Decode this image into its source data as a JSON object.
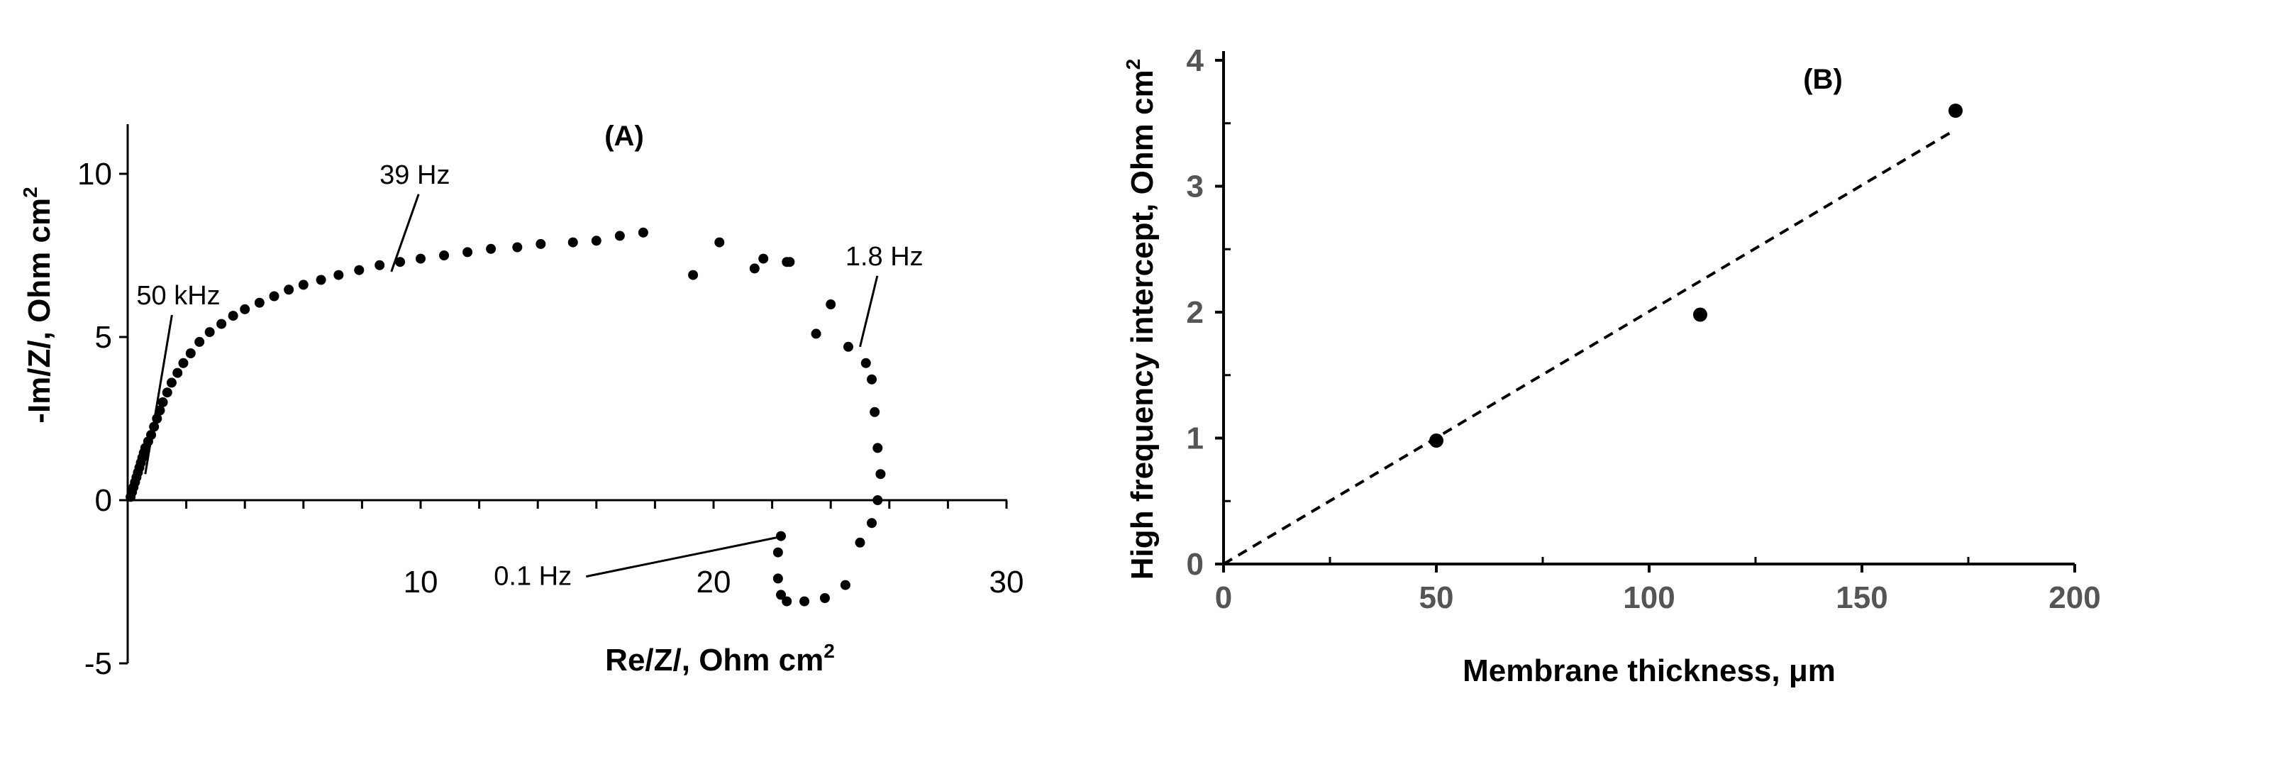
{
  "chart_data": [
    {
      "panel_label": "(A)",
      "type": "scatter",
      "xlabel": "Re/Z/,  Ohm cm",
      "xlabel_sup": "2",
      "ylabel": "-Im/Z/,  Ohm cm",
      "ylabel_sup": "2",
      "xlim": [
        0,
        30
      ],
      "ylim": [
        -5,
        12.5
      ],
      "xticks": [
        10,
        20,
        30
      ],
      "yticks": [
        -5,
        0,
        5,
        10
      ],
      "grid": false,
      "annotations": [
        {
          "text": "50 kHz",
          "x": 0.6,
          "y": 0.8,
          "label_x": 0.3,
          "label_y": 6.0
        },
        {
          "text": "39 Hz",
          "x": 9.0,
          "y": 7.0,
          "label_x": 8.6,
          "label_y": 9.7
        },
        {
          "text": "1.8 Hz",
          "x": 25.0,
          "y": 4.7,
          "label_x": 24.5,
          "label_y": 7.2
        },
        {
          "text": "0.1 Hz",
          "x": 22.4,
          "y": -1.1,
          "label_x": 12.5,
          "label_y": -2.6
        }
      ],
      "series": [
        {
          "x": [
            0.1,
            0.15,
            0.2,
            0.25,
            0.3,
            0.35,
            0.4,
            0.45,
            0.5,
            0.55,
            0.6,
            0.7,
            0.8,
            0.9,
            1.0,
            1.1,
            1.2,
            1.35,
            1.5,
            1.7,
            1.9,
            2.15,
            2.45,
            2.8,
            3.2,
            3.6,
            4.0,
            4.5,
            5.0,
            5.5,
            6.0,
            6.6,
            7.2,
            7.9,
            8.6,
            9.3,
            10.0,
            10.8,
            11.6,
            12.4,
            13.3,
            14.1,
            15.2,
            16.0,
            16.8,
            17.6,
            19.3,
            20.2,
            21.4,
            21.7,
            22.5,
            22.6,
            23.5,
            24.0,
            24.6,
            25.2,
            25.4,
            25.5,
            25.6,
            25.7,
            25.6,
            25.4,
            25.0,
            24.5,
            23.8,
            23.1,
            22.5,
            22.3,
            22.2,
            22.2,
            22.3
          ],
          "y": [
            0.1,
            0.25,
            0.4,
            0.55,
            0.7,
            0.85,
            1.0,
            1.15,
            1.3,
            1.45,
            1.6,
            1.8,
            2.0,
            2.25,
            2.5,
            2.75,
            3.0,
            3.3,
            3.6,
            3.9,
            4.2,
            4.5,
            4.85,
            5.15,
            5.4,
            5.65,
            5.85,
            6.05,
            6.25,
            6.45,
            6.6,
            6.75,
            6.9,
            7.05,
            7.2,
            7.3,
            7.4,
            7.5,
            7.6,
            7.7,
            7.75,
            7.85,
            7.9,
            7.95,
            8.1,
            8.2,
            6.9,
            7.9,
            7.1,
            7.4,
            7.3,
            7.3,
            5.1,
            6.0,
            4.7,
            4.2,
            3.7,
            2.7,
            1.6,
            0.8,
            0.0,
            -0.7,
            -1.3,
            -2.6,
            -3.0,
            -3.1,
            -3.1,
            -2.9,
            -2.4,
            -1.6,
            -1.1
          ]
        }
      ]
    },
    {
      "panel_label": "(B)",
      "type": "scatter",
      "xlabel": "Membrane thickness, μm",
      "ylabel": "High frequency intercept, Ohm cm",
      "ylabel_sup": "2",
      "xlim": [
        0,
        200
      ],
      "ylim": [
        0,
        4
      ],
      "xticks": [
        0,
        50,
        100,
        150,
        200
      ],
      "yticks": [
        0,
        1,
        2,
        3,
        4
      ],
      "grid": false,
      "series": [
        {
          "x": [
            50,
            112,
            172
          ],
          "y": [
            0.98,
            1.98,
            3.6
          ]
        }
      ],
      "trendline": {
        "x": [
          0,
          172
        ],
        "y": [
          0,
          3.45
        ]
      }
    }
  ]
}
